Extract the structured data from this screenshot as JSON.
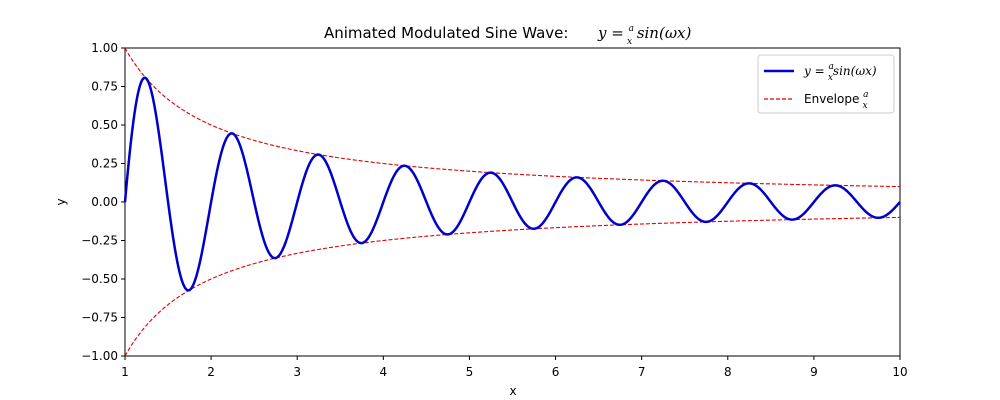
{
  "chart_data": {
    "type": "line",
    "title": "Animated Modulated Sine Wave: y = (a/x) sin(ωx)",
    "title_prefix": "Animated Modulated Sine Wave: ",
    "xlabel": "x",
    "ylabel": "y",
    "xlim": [
      1,
      10
    ],
    "ylim": [
      -1,
      1
    ],
    "xticks": [
      "1",
      "2",
      "3",
      "4",
      "5",
      "6",
      "7",
      "8",
      "9",
      "10"
    ],
    "yticks": [
      "1.00",
      "0.75",
      "0.50",
      "0.25",
      "0.00",
      "−0.25",
      "−0.50",
      "−0.75",
      "−1.00"
    ],
    "grid": false,
    "legend_position": "top-right",
    "parameters": {
      "a": 1,
      "omega": 6.283
    },
    "series": [
      {
        "name": "y = (a/x) sin(ωx)",
        "color": "#0000cc",
        "style": "solid",
        "x": [
          1,
          1.25,
          1.75,
          2.25,
          2.75,
          3.25,
          3.75,
          4.25,
          4.75,
          5.25,
          5.75,
          6.25,
          6.75,
          7.25,
          7.75,
          8.25,
          8.75,
          9.25,
          9.75,
          10
        ],
        "y": [
          0,
          0.8,
          -0.571,
          0.444,
          -0.364,
          0.308,
          -0.267,
          0.235,
          -0.211,
          0.19,
          -0.174,
          0.16,
          -0.148,
          0.138,
          -0.129,
          0.121,
          -0.114,
          0.108,
          -0.103,
          0
        ]
      },
      {
        "name": "Envelope a/x",
        "color": "#e00000",
        "style": "dashed",
        "x": [
          1,
          1.5,
          2,
          3,
          4,
          5,
          6,
          7,
          8,
          9,
          10
        ],
        "y": [
          1,
          0.667,
          0.5,
          0.333,
          0.25,
          0.2,
          0.167,
          0.143,
          0.125,
          0.111,
          0.1
        ],
        "mirrored": true
      }
    ]
  },
  "legend": {
    "sine_label_prefix": "y = ",
    "sine_label_suffix": "sin(ωx)",
    "envelope_label_prefix": "Envelope "
  }
}
